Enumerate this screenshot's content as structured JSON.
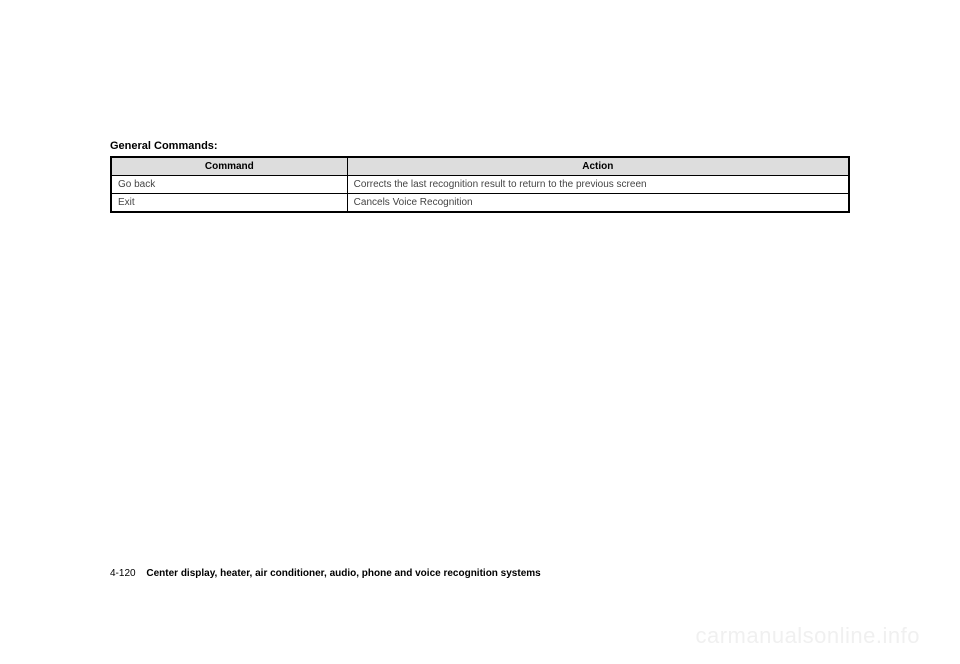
{
  "section": {
    "title": "General Commands:"
  },
  "table": {
    "columns": [
      "Command",
      "Action"
    ],
    "rows": [
      {
        "command": "Go back",
        "action": "Corrects the last recognition result to return to the previous screen"
      },
      {
        "command": "Exit",
        "action": "Cancels Voice Recognition"
      }
    ],
    "header_bg": "#dddddd",
    "border_color": "#000000",
    "header_fontsize": 10,
    "cell_fontsize": 10,
    "col_widths": [
      "32%",
      "68%"
    ]
  },
  "footer": {
    "page_number": "4-120",
    "text": "Center display, heater, air conditioner, audio, phone and voice recognition systems"
  },
  "watermark": {
    "text": "carmanualsonline.info",
    "color": "#f0f0f0",
    "fontsize": 22
  }
}
